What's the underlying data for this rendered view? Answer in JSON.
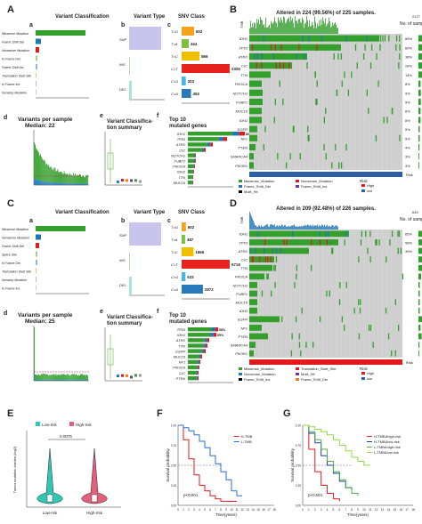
{
  "panel_letters": [
    "A",
    "B",
    "C",
    "D",
    "E",
    "F",
    "G"
  ],
  "sub_letters": [
    "a",
    "b",
    "c",
    "d",
    "e",
    "f",
    "a",
    "b",
    "c",
    "d",
    "e",
    "f"
  ],
  "panelA": {
    "vc_title": "Variant Classification",
    "vt_title": "Variant Type",
    "snv_title": "SNV Class",
    "vc_labels": [
      "Missense Mutation",
      "Frame Shift Del",
      "Nonsense Mutation",
      "In Frame Del",
      "Frame Shift Ins",
      "Translation Start Site",
      "In Frame Ins",
      "Nonstop Mutation"
    ],
    "vt_labels": [
      "SNP",
      "INS",
      "DEL"
    ],
    "snv_labels": [
      "T>G",
      "T>A",
      "T>C",
      "C>T",
      "C>G",
      "C>A"
    ],
    "vps_title": "Variants per sample",
    "vps_median": "Median: 22",
    "vcs_title": "Variant Classifica-",
    "vcs_title2": "tion summary",
    "top10_title": "Top 10",
    "top10_title2": "mutated genes",
    "top10_genes": [
      "IDH1",
      "TP53",
      "ATRX",
      "CIC",
      "NOTCH1",
      "FUBP1",
      "PIK3CA",
      "IDH2",
      "TTN",
      "MUC16"
    ],
    "top10_pct": [
      "86%",
      "",
      "",
      "",
      "",
      "",
      "",
      "",
      "",
      ""
    ]
  },
  "panelB": {
    "title": "Altered in 224 (99.56%) of 225 samples.",
    "tmb_label": "TMB",
    "tmb_max": "2127",
    "nsamp": "No. of samples",
    "genes": [
      "IDH1",
      "TP53",
      "ATRX",
      "CIC",
      "TTN",
      "PIK3CA",
      "NOTCH1",
      "FUBP1",
      "MUC16",
      "IDH2",
      "EGFR",
      "NF1",
      "PTEN",
      "SMARCA4",
      "PIK3R1"
    ],
    "pct": [
      "85%",
      "60%",
      "38%",
      "28%",
      "14%",
      "8%",
      "9%",
      "9%",
      "8%",
      "8%",
      "5%",
      "5%",
      "4%",
      "3%",
      "3%"
    ],
    "legend": [
      "Missense_Mutation",
      "Nonsense_Mutation",
      "Frame_Shift_Del",
      "Frame_Shift_Ins",
      "Multi_Hit"
    ],
    "risk_label": "Risk",
    "risk_levels": [
      "High",
      "low"
    ],
    "risk_row": "Risk"
  },
  "panelC": {
    "vc_title": "Variant Classification",
    "vt_title": "Variant Type",
    "snv_title": "SNV Class",
    "vc_labels": [
      "Missense Mutation",
      "Nonsense Mutation",
      "Frame Shift Del",
      "Splice Site",
      "In Frame Del",
      "Translation Start Site",
      "Nonstop Mutation",
      "In Frame Ins"
    ],
    "vt_labels": [
      "SNP",
      "INS",
      "DEL"
    ],
    "snv_labels": [
      "T>G",
      "T>A",
      "T>C",
      "C>T",
      "C>G",
      "C>A"
    ],
    "vps_title": "Variants per sample",
    "vps_median": "Median: 25",
    "vcs_title": "Variant Classifica-",
    "vcs_title2": "tion summary",
    "top10_title": "Top 10",
    "top10_title2": "mutated genes",
    "top10_genes": [
      "TP53",
      "IDH1",
      "ATRX",
      "TTN",
      "EGFR",
      "MUC16",
      "NF1",
      "PIK3CA",
      "CIC",
      "PTEN"
    ],
    "top10_pct": [
      "58%",
      "55%",
      "",
      "",
      "",
      "",
      "",
      "",
      "",
      ""
    ]
  },
  "panelD": {
    "title": "Altered in 209 (92.48%) of 226 samples.",
    "tmb_label": "TMB",
    "tmb_max": "649",
    "nsamp": "No. of samples",
    "genes": [
      "IDH1",
      "TP53",
      "ATRX",
      "CIC",
      "TTN",
      "PIK3CA",
      "NOTCH1",
      "FUBP1",
      "MUC16",
      "IDH2",
      "EGFR",
      "NF1",
      "PTEN",
      "SMARCA4",
      "PIK3R1"
    ],
    "pct": [
      "65%",
      "58%",
      "39%",
      "",
      "",
      "",
      "",
      "",
      "",
      "",
      "",
      "",
      "",
      "",
      ""
    ],
    "legend": [
      "Missense_Mutation",
      "Translation_Start_Site",
      "Nonsense_Mutation",
      "Multi_Hit",
      "Frame_Shift_Ins",
      "Frame_Shift_Del"
    ],
    "risk_label": "Risk",
    "risk_levels": [
      "High",
      "low"
    ],
    "risk_row": "Risk"
  },
  "panelE": {
    "legend_items": [
      "Low-risk",
      "High-risk"
    ],
    "pvalue": "0.0075",
    "ylabel": "Tumor mutation burden (log2)",
    "xcats": [
      "Low-risk",
      "High-risk"
    ]
  },
  "panelF": {
    "ylabel": "Survival probability",
    "xlabel": "Time(years)",
    "legend": [
      "H-TMB",
      "L-TMB"
    ],
    "pval": "p<0.001"
  },
  "panelG": {
    "ylabel": "Survival probability",
    "xlabel": "Time(years)",
    "legend": [
      "H-TMB&high-risk",
      "H-TMB&low-risk",
      "L-TMB&high-risk",
      "L-TMB&low-risk"
    ],
    "pval": "p<0.001"
  },
  "colors": {
    "missense": "#33a02c",
    "nonsense": "#e31a1c",
    "fs_del": "#1f78b4",
    "fs_ins": "#6a3d9a",
    "multi": "#000000",
    "grid_bg": "#cfcfcf",
    "tg": "#f7a21b",
    "ta": "#7ec142",
    "tc": "#f0c000",
    "ct": "#e7231f",
    "cg": "#47b7e6",
    "ca": "#2a7ab9",
    "low_risk": "#2fc7b6",
    "high_risk": "#e35f7a",
    "red_line": "#e41a1c",
    "blue_line": "#2a6fdb"
  },
  "chart_data": [
    {
      "type": "bar",
      "title": "SNV Class",
      "categories": [
        "T>G",
        "T>A",
        "T>C",
        "C>T",
        "C>G",
        "C>A"
      ],
      "values": [
        602,
        344,
        866,
        2326,
        203,
        453
      ]
    },
    {
      "type": "bar",
      "title": "SNV Class",
      "categories": [
        "T>G",
        "T>A",
        "T>C",
        "C>T",
        "C>G",
        "C>A"
      ],
      "values": [
        602,
        487,
        1666,
        6718,
        533,
        2972
      ]
    },
    {
      "type": "line",
      "title": "",
      "xlabel": "Time(years)",
      "ylabel": "Survival probability",
      "xlim": [
        0,
        18
      ],
      "ylim": [
        0,
        1
      ],
      "series": [
        {
          "name": "H-TMB",
          "x": [
            0,
            1,
            2,
            3,
            4,
            5,
            6,
            7,
            8,
            9,
            10,
            11
          ],
          "values": [
            1.0,
            0.82,
            0.58,
            0.38,
            0.25,
            0.18,
            0.12,
            0.08,
            0.05,
            0.05,
            0.05,
            0.05
          ]
        },
        {
          "name": "L-TMB",
          "x": [
            0,
            1,
            2,
            3,
            4,
            5,
            6,
            7,
            8,
            9,
            10,
            11,
            12
          ],
          "values": [
            1.0,
            0.97,
            0.93,
            0.88,
            0.8,
            0.72,
            0.62,
            0.52,
            0.42,
            0.32,
            0.18,
            0.12,
            0.12
          ]
        }
      ]
    },
    {
      "type": "line",
      "title": "",
      "xlabel": "Time(years)",
      "ylabel": "Survival probability",
      "xlim": [
        0,
        18
      ],
      "ylim": [
        0,
        1
      ],
      "series": [
        {
          "name": "H-TMB&high-risk",
          "x": [
            0,
            1,
            2,
            3,
            4,
            5,
            6
          ],
          "values": [
            1.0,
            0.7,
            0.42,
            0.25,
            0.15,
            0.08,
            0.05
          ]
        },
        {
          "name": "H-TMB&low-risk",
          "x": [
            0,
            1,
            2,
            3,
            4,
            5,
            6,
            7,
            8
          ],
          "values": [
            1.0,
            0.9,
            0.78,
            0.62,
            0.5,
            0.4,
            0.3,
            0.22,
            0.2
          ]
        },
        {
          "name": "L-TMB&high-risk",
          "x": [
            0,
            1,
            2,
            3,
            4,
            5,
            6,
            7,
            8,
            9
          ],
          "values": [
            1.0,
            0.92,
            0.82,
            0.7,
            0.55,
            0.42,
            0.32,
            0.22,
            0.15,
            0.12
          ]
        },
        {
          "name": "L-TMB&low-risk",
          "x": [
            0,
            1,
            2,
            3,
            4,
            5,
            6,
            7,
            8,
            9,
            10,
            11
          ],
          "values": [
            1.0,
            0.98,
            0.95,
            0.92,
            0.88,
            0.82,
            0.75,
            0.68,
            0.6,
            0.55,
            0.5,
            0.5
          ]
        }
      ]
    }
  ]
}
